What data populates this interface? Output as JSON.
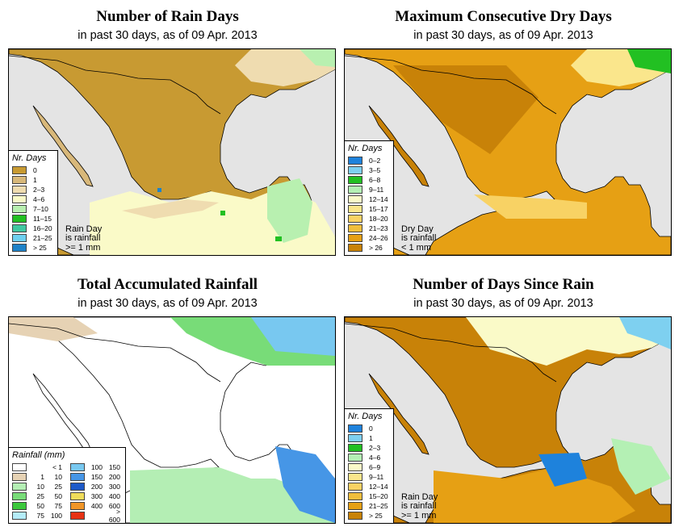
{
  "panels": {
    "rain_days": {
      "title": "Number of Rain Days",
      "subtitle": "in past 30 days, as of  09 Apr. 2013",
      "legend_title": "Nr. Days",
      "legend": [
        {
          "label": "0",
          "color": "#c89a32"
        },
        {
          "label": "1",
          "color": "#d8b87a"
        },
        {
          "label": "2–3",
          "color": "#efdcb0"
        },
        {
          "label": "4–6",
          "color": "#fafac8"
        },
        {
          "label": "7–10",
          "color": "#b8f0b0"
        },
        {
          "label": "11–15",
          "color": "#22c022"
        },
        {
          "label": "16–20",
          "color": "#40c8a0"
        },
        {
          "label": "21–25",
          "color": "#6ed0f0"
        },
        {
          "label": "> 25",
          "color": "#1e82c8"
        }
      ],
      "note": [
        "Rain Day",
        "is rainfall",
        ">= 1 mm"
      ]
    },
    "dry_days": {
      "title": "Maximum Consecutive Dry Days",
      "subtitle": "in past 30 days, as of  09 Apr. 2013",
      "legend_title": "Nr. Days",
      "legend": [
        {
          "label": "0–2",
          "color": "#1e82dc"
        },
        {
          "label": "3–5",
          "color": "#7ed0f0"
        },
        {
          "label": "6–8",
          "color": "#22c022"
        },
        {
          "label": "9–11",
          "color": "#b4f0b4"
        },
        {
          "label": "12–14",
          "color": "#fafac8"
        },
        {
          "label": "15–17",
          "color": "#fae68c"
        },
        {
          "label": "18–20",
          "color": "#f8d264"
        },
        {
          "label": "21–23",
          "color": "#f0be3c"
        },
        {
          "label": "24–26",
          "color": "#e6a014"
        },
        {
          "label": "> 26",
          "color": "#c88208"
        }
      ],
      "note": [
        "Dry Day",
        "is rainfall",
        "< 1 mm"
      ]
    },
    "total_rain": {
      "title": "Total Accumulated Rainfall",
      "subtitle": "in past 30 days, as of  09 Apr. 2013",
      "legend_title": "Rainfall (mm)",
      "legend_left": [
        {
          "from": "",
          "to": "< 1",
          "color": "#ffffff"
        },
        {
          "from": "1",
          "to": "10",
          "color": "#e6d2b4"
        },
        {
          "from": "10",
          "to": "25",
          "color": "#b4eeb4"
        },
        {
          "from": "25",
          "to": "50",
          "color": "#78dc78"
        },
        {
          "from": "50",
          "to": "75",
          "color": "#3cc83c"
        },
        {
          "from": "75",
          "to": "100",
          "color": "#b4ecf8"
        }
      ],
      "legend_right": [
        {
          "from": "100",
          "to": "150",
          "color": "#78c8f0"
        },
        {
          "from": "150",
          "to": "200",
          "color": "#4696e6"
        },
        {
          "from": "200",
          "to": "300",
          "color": "#1e5ac8"
        },
        {
          "from": "300",
          "to": "400",
          "color": "#f0dc5a"
        },
        {
          "from": "400",
          "to": "600",
          "color": "#f09628"
        },
        {
          "from": "",
          "to": "> 600",
          "color": "#e63214"
        }
      ]
    },
    "days_since": {
      "title": "Number of Days Since Rain",
      "subtitle": "in past 30 days, as of  09 Apr. 2013",
      "legend_title": "Nr. Days",
      "legend": [
        {
          "label": "0",
          "color": "#1e82dc"
        },
        {
          "label": "1",
          "color": "#7ed0f0"
        },
        {
          "label": "2–3",
          "color": "#22c022"
        },
        {
          "label": "4–6",
          "color": "#b4f0b4"
        },
        {
          "label": "6–9",
          "color": "#fafac8"
        },
        {
          "label": "9–11",
          "color": "#fae68c"
        },
        {
          "label": "12–14",
          "color": "#f8d264"
        },
        {
          "label": "15–20",
          "color": "#f0be3c"
        },
        {
          "label": "21–25",
          "color": "#e6a014"
        },
        {
          "label": "> 25",
          "color": "#c88208"
        }
      ],
      "note": [
        "Rain Day",
        "is rainfall",
        ">= 1 mm"
      ]
    }
  }
}
